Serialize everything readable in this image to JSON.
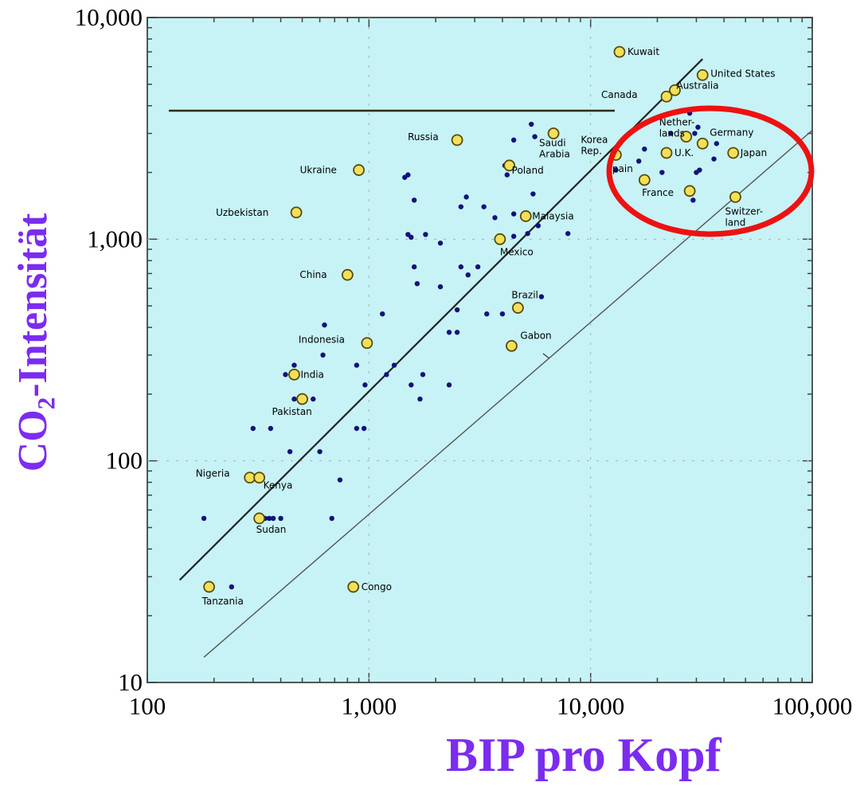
{
  "colors": {
    "background": "#c7f3f6",
    "axis_label": "#7b2cf0",
    "highlight_circle": "#ee1111",
    "labeled_point_fill": "#f2e05a",
    "small_point_fill": "#12127a"
  },
  "chart_data": {
    "type": "scatter",
    "title": "",
    "xlabel": "BIP pro Kopf",
    "ylabel": "CO₂-Intensität",
    "x_scale": "log",
    "y_scale": "log",
    "xlim": [
      100,
      100000
    ],
    "ylim": [
      10,
      10000
    ],
    "x_ticks": [
      "100",
      "1,000",
      "10,000",
      "100,000"
    ],
    "y_ticks": [
      "10",
      "100",
      "1,000",
      "10,000"
    ],
    "reference_lines": [
      {
        "from": [
          140,
          29
        ],
        "to": [
          32000,
          6500
        ]
      },
      {
        "from": [
          180,
          13
        ],
        "to": [
          100000,
          3100
        ]
      }
    ],
    "labeled_countries": [
      {
        "name": "Kuwait",
        "x": 13500,
        "y": 7000
      },
      {
        "name": "United States",
        "x": 32000,
        "y": 5500
      },
      {
        "name": "Canada",
        "x": 22000,
        "y": 4400
      },
      {
        "name": "Australia",
        "x": 24000,
        "y": 4700
      },
      {
        "name": "Russia",
        "x": 2500,
        "y": 2800
      },
      {
        "name": "Saudi Arabia",
        "x": 6800,
        "y": 3000
      },
      {
        "name": "Korea Rep.",
        "x": 13000,
        "y": 2400
      },
      {
        "name": "Nether-lands",
        "x": 27000,
        "y": 2900
      },
      {
        "name": "Germany",
        "x": 32000,
        "y": 2700
      },
      {
        "name": "U.K.",
        "x": 22000,
        "y": 2450
      },
      {
        "name": "Japan",
        "x": 44000,
        "y": 2450
      },
      {
        "name": "Ukraine",
        "x": 900,
        "y": 2050
      },
      {
        "name": "Poland",
        "x": 4300,
        "y": 2150
      },
      {
        "name": "Spain",
        "x": 17500,
        "y": 1850
      },
      {
        "name": "France",
        "x": 28000,
        "y": 1650
      },
      {
        "name": "Switzer-land",
        "x": 45000,
        "y": 1550
      },
      {
        "name": "Uzbekistan",
        "x": 470,
        "y": 1320
      },
      {
        "name": "Malaysia",
        "x": 5100,
        "y": 1270
      },
      {
        "name": "Mexico",
        "x": 3900,
        "y": 1000
      },
      {
        "name": "China",
        "x": 800,
        "y": 690
      },
      {
        "name": "Brazil",
        "x": 4700,
        "y": 490
      },
      {
        "name": "Indonesia",
        "x": 980,
        "y": 340
      },
      {
        "name": "Gabon",
        "x": 4400,
        "y": 330
      },
      {
        "name": "India",
        "x": 460,
        "y": 245
      },
      {
        "name": "Pakistan",
        "x": 500,
        "y": 190
      },
      {
        "name": "Nigeria",
        "x": 290,
        "y": 84
      },
      {
        "name": "Kenya",
        "x": 320,
        "y": 84
      },
      {
        "name": "Sudan",
        "x": 320,
        "y": 55
      },
      {
        "name": "Tanzania",
        "x": 190,
        "y": 27
      },
      {
        "name": "Congo",
        "x": 850,
        "y": 27
      }
    ],
    "other_countries": [
      [
        240,
        27
      ],
      [
        180,
        55
      ],
      [
        340,
        55
      ],
      [
        355,
        55
      ],
      [
        370,
        55
      ],
      [
        400,
        55
      ],
      [
        680,
        55
      ],
      [
        740,
        82
      ],
      [
        300,
        140
      ],
      [
        360,
        140
      ],
      [
        880,
        140
      ],
      [
        950,
        140
      ],
      [
        440,
        110
      ],
      [
        600,
        110
      ],
      [
        460,
        190
      ],
      [
        560,
        190
      ],
      [
        460,
        270
      ],
      [
        420,
        245
      ],
      [
        620,
        300
      ],
      [
        630,
        410
      ],
      [
        880,
        270
      ],
      [
        960,
        220
      ],
      [
        1150,
        460
      ],
      [
        1200,
        245
      ],
      [
        1300,
        270
      ],
      [
        1550,
        220
      ],
      [
        1700,
        190
      ],
      [
        1750,
        245
      ],
      [
        2300,
        220
      ],
      [
        2300,
        380
      ],
      [
        2500,
        380
      ],
      [
        2500,
        480
      ],
      [
        2600,
        750
      ],
      [
        2800,
        690
      ],
      [
        3100,
        750
      ],
      [
        3400,
        460
      ],
      [
        4000,
        460
      ],
      [
        6000,
        550
      ],
      [
        1600,
        750
      ],
      [
        1650,
        630
      ],
      [
        2100,
        610
      ],
      [
        2100,
        960
      ],
      [
        1500,
        1050
      ],
      [
        1550,
        1020
      ],
      [
        1800,
        1050
      ],
      [
        2600,
        1400
      ],
      [
        2750,
        1550
      ],
      [
        3300,
        1400
      ],
      [
        3700,
        1250
      ],
      [
        4500,
        1300
      ],
      [
        4500,
        1030
      ],
      [
        5200,
        1060
      ],
      [
        5800,
        1150
      ],
      [
        7900,
        1060
      ],
      [
        1600,
        1500
      ],
      [
        1450,
        1900
      ],
      [
        1500,
        1950
      ],
      [
        4100,
        2150
      ],
      [
        4200,
        1950
      ],
      [
        5500,
        1600
      ],
      [
        4500,
        2800
      ],
      [
        5400,
        3300
      ],
      [
        5600,
        2900
      ],
      [
        13000,
        2050
      ],
      [
        16500,
        2250
      ],
      [
        17500,
        2550
      ],
      [
        21000,
        2000
      ],
      [
        30000,
        2000
      ],
      [
        31000,
        2050
      ],
      [
        29000,
        1500
      ],
      [
        36000,
        2300
      ],
      [
        37000,
        2700
      ],
      [
        28000,
        3700
      ],
      [
        29500,
        3000
      ],
      [
        30500,
        3200
      ],
      [
        23000,
        3000
      ]
    ]
  }
}
